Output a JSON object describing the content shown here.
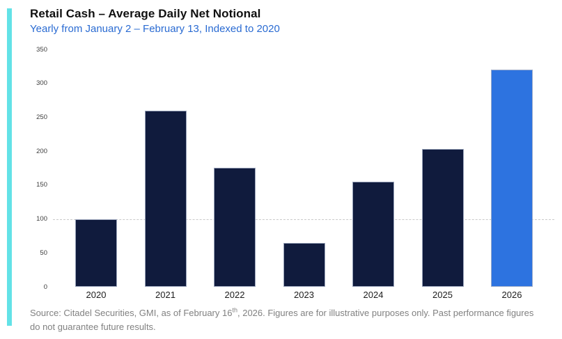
{
  "page": {
    "title": "Retail Cash – Average Daily Net Notional",
    "subtitle": "Yearly from January 2 – February 13, Indexed to 2020"
  },
  "colors": {
    "accent_teal": "#63e2e7",
    "subtitle_blue": "#2a6bd2",
    "bar_navy": "#101b3d",
    "bar_highlight_blue": "#2d73e0",
    "gridline_gray": "#c9c9c9",
    "footnote_gray": "#818181"
  },
  "chart_data": {
    "type": "bar",
    "title": "Retail Cash – Average Daily Net Notional",
    "subtitle": "Yearly from January 2 – February 13, Indexed to 2020",
    "categories": [
      "2020",
      "2021",
      "2022",
      "2023",
      "2024",
      "2025",
      "2026"
    ],
    "values": [
      100,
      260,
      176,
      65,
      156,
      204,
      321
    ],
    "highlight_index": 6,
    "bar_color": "#101b3d",
    "highlight_color": "#2d73e0",
    "xlabel": "",
    "ylabel": "",
    "ylim": [
      0,
      350
    ],
    "ytick_step": 50,
    "yticks": [
      0,
      50,
      100,
      150,
      200,
      250,
      300,
      350
    ],
    "reference_gridline_at": 100,
    "grid": "single dashed horizontal line at indexed baseline 100",
    "legend": "none"
  },
  "footer": {
    "line1_before_sup": "Source: Citadel Securities, GMI, as of February 16",
    "line1_sup": "th",
    "line1_after_sup": ", 2026. Figures are for illustrative purposes only. Past performance figures",
    "line2": "do not guarantee future results."
  }
}
